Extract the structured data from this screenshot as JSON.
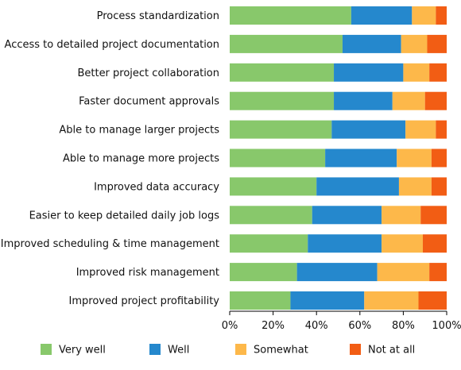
{
  "chart_data": {
    "type": "bar",
    "orientation": "horizontal",
    "stacked": true,
    "title": "",
    "xlabel": "",
    "ylabel": "",
    "xlim": [
      0,
      100
    ],
    "x_ticks": [
      "0%",
      "20%",
      "40%",
      "60%",
      "80%",
      "100%"
    ],
    "grid": false,
    "legend_position": "bottom",
    "categories": [
      "Process standardization",
      "Access to detailed project documentation",
      "Better project collaboration",
      "Faster document approvals",
      "Able to manage larger projects",
      "Able to manage more projects",
      "Improved data accuracy",
      "Easier to keep detailed daily job logs",
      "Improved scheduling & time management",
      "Improved risk management",
      "Improved project profitability"
    ],
    "series": [
      {
        "name": "Very well",
        "color": "#88c86b",
        "values": [
          56,
          52,
          48,
          48,
          47,
          44,
          40,
          38,
          36,
          31,
          28
        ]
      },
      {
        "name": "Well",
        "color": "#2588cd",
        "values": [
          28,
          27,
          32,
          27,
          34,
          33,
          38,
          32,
          34,
          37,
          34
        ]
      },
      {
        "name": "Somewhat",
        "color": "#fdb84a",
        "values": [
          11,
          12,
          12,
          15,
          14,
          16,
          15,
          18,
          19,
          24,
          25
        ]
      },
      {
        "name": "Not at all",
        "color": "#f25d14",
        "values": [
          5,
          9,
          8,
          10,
          5,
          7,
          7,
          12,
          11,
          8,
          13
        ]
      }
    ]
  }
}
